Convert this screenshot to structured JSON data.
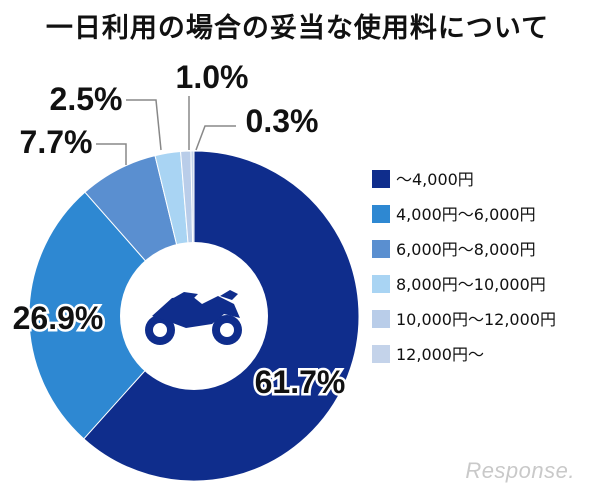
{
  "title": "一日利用の場合の妥当な使用料について",
  "watermark": "Response.",
  "chart_data": {
    "type": "pie",
    "style": "donut",
    "title": "一日利用の場合の妥当な使用料について",
    "center_icon": "motorcycle-icon",
    "legend_position": "right",
    "slices": [
      {
        "label": "～4,000円",
        "value": 61.7,
        "display": "61.7%",
        "color": "#0f2d8c"
      },
      {
        "label": "4,000円～6,000円",
        "value": 26.9,
        "display": "26.9%",
        "color": "#2e88d2"
      },
      {
        "label": "6,000円～8,000円",
        "value": 7.7,
        "display": "7.7%",
        "color": "#5a8fd0"
      },
      {
        "label": "8,000円～10,000円",
        "value": 2.5,
        "display": "2.5%",
        "color": "#a9d4f3"
      },
      {
        "label": "10,000円～12,000円",
        "value": 1.0,
        "display": "1.0%",
        "color": "#b9cde9"
      },
      {
        "label": "12,000円～",
        "value": 0.3,
        "display": "0.3%",
        "color": "#c4d3ea"
      }
    ]
  }
}
